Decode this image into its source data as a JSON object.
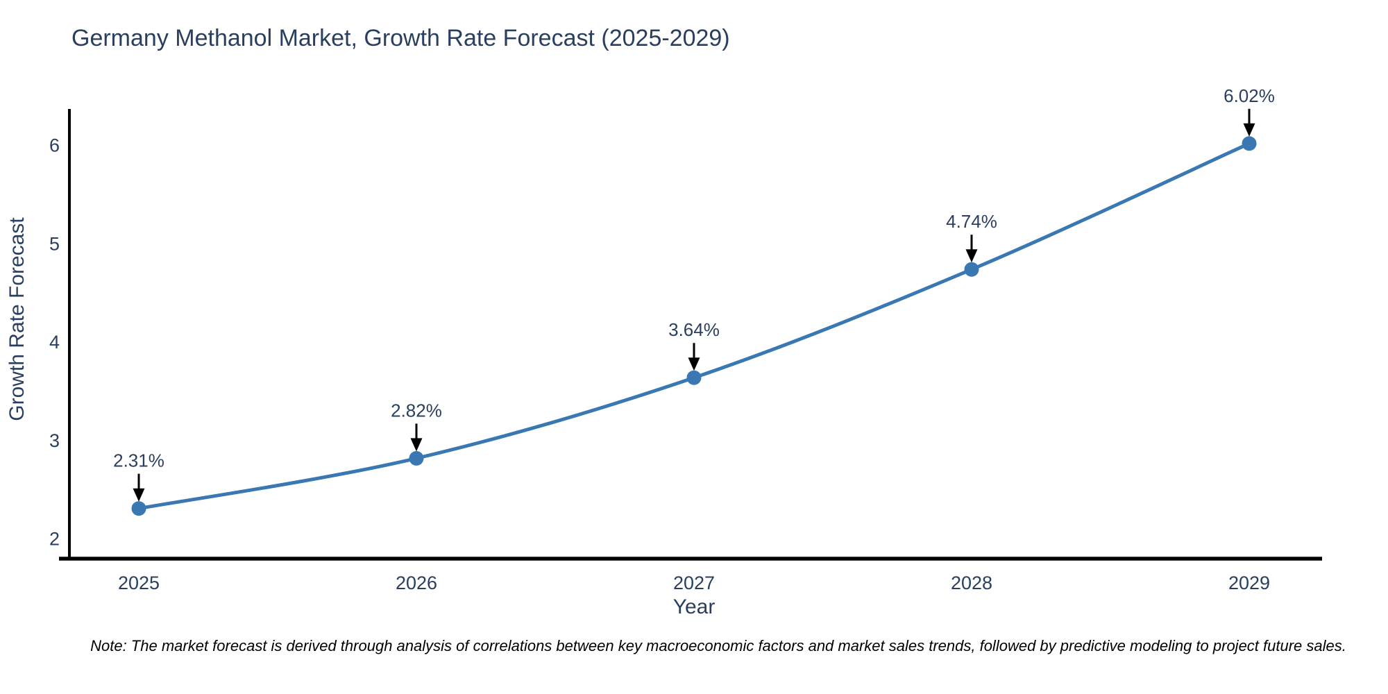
{
  "chart_data": {
    "type": "line",
    "title": "Germany Methanol Market, Growth Rate Forecast (2025-2029)",
    "xlabel": "Year",
    "ylabel": "Growth Rate Forecast",
    "x": [
      2025,
      2026,
      2027,
      2028,
      2029
    ],
    "series": [
      {
        "name": "Growth Rate Forecast",
        "values": [
          2.31,
          2.82,
          3.64,
          4.74,
          6.02
        ],
        "point_labels": [
          "2.31%",
          "2.82%",
          "3.64%",
          "4.74%",
          "6.02%"
        ]
      }
    ],
    "xticks": [
      "2025",
      "2026",
      "2027",
      "2028",
      "2029"
    ],
    "yticks": [
      "2",
      "3",
      "4",
      "5",
      "6"
    ],
    "xlim": [
      2024.75,
      2029.25
    ],
    "ylim": [
      1.8,
      6.35
    ],
    "grid": false,
    "legend_position": "none",
    "line_color": "#3a78b3",
    "marker_color": "#3a78b3",
    "arrow_color": "#000000",
    "axis_line_color": "#000000"
  },
  "note": "Note: The market forecast is derived through analysis of correlations between key macroeconomic factors and market sales trends, followed by predictive modeling to project future sales."
}
